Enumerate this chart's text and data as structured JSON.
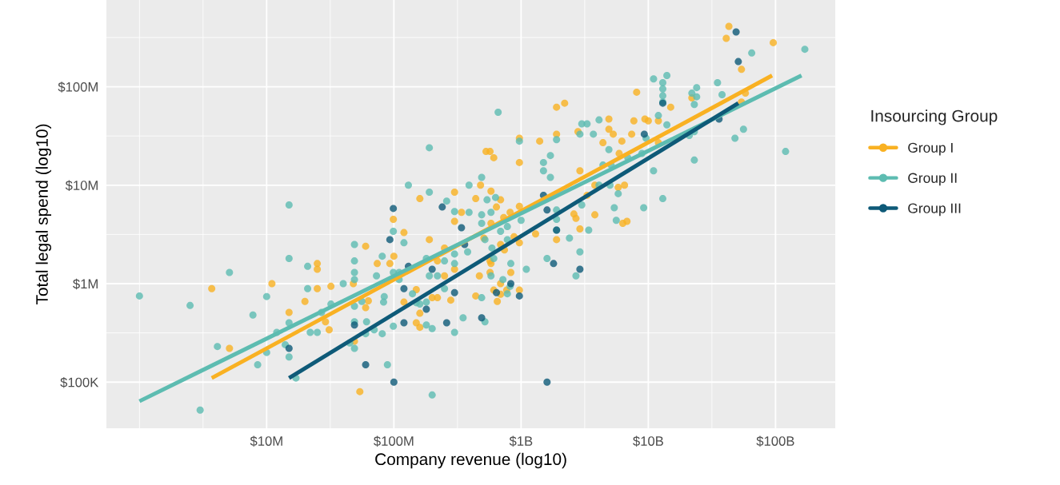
{
  "chart_data": {
    "type": "scatter",
    "xlabel": "Company revenue (log10)",
    "ylabel": "Total legal spend (log10)",
    "legend_title": "Insourcing Group",
    "log": "xy",
    "grid": true,
    "legend": "right",
    "xlim": [
      550000.0,
      295000000000.0
    ],
    "ylim": [
      34000.0,
      760000000.0
    ],
    "xticks": [
      {
        "value": 10000000.0,
        "label": "$10M"
      },
      {
        "value": 100000000.0,
        "label": "$100M"
      },
      {
        "value": 1000000000.0,
        "label": "$1B"
      },
      {
        "value": 10000000000.0,
        "label": "$10B"
      },
      {
        "value": 100000000000.0,
        "label": "$100B"
      }
    ],
    "yticks": [
      {
        "value": 100000.0,
        "label": "$100K"
      },
      {
        "value": 1000000.0,
        "label": "$1M"
      },
      {
        "value": 10000000.0,
        "label": "$10M"
      },
      {
        "value": 100000000.0,
        "label": "$100M"
      }
    ],
    "series": [
      {
        "name": "Group I",
        "marker": "circle",
        "color": "#f9b122",
        "x": [
          3700000.0,
          5100000.0,
          11000000.0,
          15000000.0,
          20000000.0,
          25000000.0,
          25000000.0,
          25000000.0,
          29000000.0,
          31000000.0,
          32000000.0,
          48000000.0,
          49000000.0,
          54000000.0,
          60000000.0,
          60000000.0,
          63000000.0,
          74000000.0,
          93000000.0,
          99000000.0,
          100000000.0,
          120000000.0,
          120000000.0,
          150000000.0,
          150000000.0,
          160000000.0,
          160000000.0,
          160000000.0,
          190000000.0,
          200000000.0,
          220000000.0,
          220000000.0,
          250000000.0,
          250000000.0,
          280000000.0,
          300000000.0,
          300000000.0,
          300000000.0,
          340000000.0,
          43000000000.0,
          41000000000.0,
          96000000000.0,
          54000000000.0,
          58000000000.0,
          54000000000.0,
          22000000000.0,
          15000000000.0,
          8100000000.0,
          1900000000.0,
          2200000000.0,
          4900000000.0,
          7700000000.0,
          9400000000.0,
          10000000000.0,
          12000000000.0,
          4900000000.0,
          5300000000.0,
          2800000000.0,
          1900000000.0,
          970000000.0,
          1400000000.0,
          4400000000.0,
          6200000000.0,
          7400000000.0,
          12000000000.0,
          530000000.0,
          570000000.0,
          610000000.0,
          970000000.0,
          5900000000.0,
          2900000000.0,
          3800000000.0,
          5800000000.0,
          6500000000.0,
          480000000.0,
          580000000.0,
          690000000.0,
          440000000.0,
          640000000.0,
          970000000.0,
          820000000.0,
          730000000.0,
          2600000000.0,
          2700000000.0,
          3800000000.0,
          6300000000.0,
          6800000000.0,
          2900000000.0,
          1300000000.0,
          1900000000.0,
          580000000.0,
          510000000.0,
          690000000.0,
          880000000.0,
          970000000.0,
          740000000.0,
          3300000000.0,
          570000000.0,
          580000000.0,
          830000000.0,
          570000000.0,
          470000000.0,
          690000000.0,
          970000000.0,
          610000000.0,
          690000000.0,
          770000000.0,
          440000000.0,
          650000000.0
        ],
        "values": [
          890000.0,
          220000.0,
          1000000.0,
          510000.0,
          660000.0,
          1600000.0,
          1400000.0,
          890000.0,
          410000.0,
          340000.0,
          940000.0,
          1000000.0,
          260000.0,
          80000.0,
          2400000.0,
          570000.0,
          670000.0,
          1600000.0,
          1600000.0,
          4500000.0,
          1900000.0,
          3300000.0,
          650000.0,
          870000.0,
          400000.0,
          7300000.0,
          360000.0,
          500000.0,
          2800000.0,
          720000.0,
          720000.0,
          1700000.0,
          2300000.0,
          1200000.0,
          680000.0,
          8500000.0,
          4300000.0,
          1400000.0,
          5300000.0,
          410000000.0,
          310000000.0,
          280000000.0,
          150000000.0,
          86000000.0,
          70000000.0,
          77000000.0,
          62000000.0,
          88000000.0,
          62000000.0,
          68000000.0,
          47000000.0,
          45000000.0,
          47000000.0,
          45000000.0,
          45000000.0,
          37000000.0,
          33000000.0,
          35000000.0,
          33000000.0,
          30000000.0,
          28000000.0,
          27000000.0,
          28000000.0,
          33000000.0,
          27000000.0,
          22000000.0,
          22000000.0,
          19000000.0,
          17000000.0,
          21000000.0,
          14000000.0,
          10000000.0,
          9500000.0,
          10000000.0,
          10000000.0,
          8700000.0,
          7100000.0,
          7300000.0,
          6000000.0,
          6100000.0,
          5300000.0,
          4700000.0,
          5100000.0,
          4600000.0,
          5000000.0,
          4100000.0,
          4300000.0,
          3600000.0,
          3200000.0,
          2800000.0,
          4100000.0,
          2900000.0,
          2500000.0,
          3000000.0,
          2600000.0,
          2200000.0,
          7900000.0,
          1700000.0,
          1600000.0,
          1300000.0,
          1300000.0,
          1200000.0,
          1000000.0,
          860000.0,
          860000.0,
          780000.0,
          860000.0,
          750000.0,
          660000.0
        ]
      },
      {
        "name": "Group II",
        "marker": "circle",
        "color": "#5dbcb1",
        "x": [
          1000000.0,
          2500000.0,
          3000000.0,
          4100000.0,
          5100000.0,
          7800000.0,
          8500000.0,
          10000000.0,
          10000000.0,
          12000000.0,
          14000000.0,
          15000000.0,
          15000000.0,
          15000000.0,
          15000000.0,
          17000000.0,
          21000000.0,
          21000000.0,
          22000000.0,
          25000000.0,
          27000000.0,
          32000000.0,
          40000000.0,
          45000000.0,
          49000000.0,
          49000000.0,
          49000000.0,
          49000000.0,
          49000000.0,
          49000000.0,
          49000000.0,
          56000000.0,
          61000000.0,
          60000000.0,
          70000000.0,
          73000000.0,
          81000000.0,
          81000000.0,
          84000000.0,
          83000000.0,
          89000000.0,
          99000000.0,
          99000000.0,
          99000000.0,
          110000000.0,
          110000000.0,
          120000000.0,
          130000000.0,
          140000000.0,
          150000000.0,
          160000000.0,
          180000000.0,
          180000000.0,
          180000000.0,
          190000000.0,
          190000000.0,
          190000000.0,
          200000000.0,
          200000000.0,
          220000000.0,
          250000000.0,
          250000000.0,
          260000000.0,
          300000000.0,
          300000000.0,
          300000000.0,
          300000000.0,
          350000000.0,
          390000000.0,
          390000000.0,
          380000000.0,
          170000000000.0,
          65000000000.0,
          14000000000.0,
          11000000000.0,
          13000000000.0,
          13000000000.0,
          13000000000.0,
          13000000000.0,
          12000000000.0,
          14000000000.0,
          24000000000.0,
          22000000000.0,
          24000000000.0,
          23000000000.0,
          35000000000.0,
          38000000000.0,
          48000000000.0,
          56000000000.0,
          120000000000.0,
          23000000000.0,
          21000000000.0,
          23000000000.0,
          660000000.0,
          970000000.0,
          1900000000.0,
          3000000000.0,
          3300000000.0,
          4100000000.0,
          2900000000.0,
          3700000000.0,
          4900000000.0,
          9600000000.0,
          8900000000.0,
          1500000000.0,
          1700000000.0,
          1500000000.0,
          1700000000.0,
          4400000000.0,
          5100000000.0,
          6900000000.0,
          11000000000.0,
          4100000000.0,
          5000000000.0,
          5800000000.0,
          13000000000.0,
          9200000000.0,
          5400000000.0,
          5600000000.0,
          3400000000.0,
          3000000000.0,
          1900000000.0,
          1900000000.0,
          1900000000.0,
          2400000000.0,
          2900000000.0,
          1600000000.0,
          2700000000.0,
          1100000000.0,
          1000000000.0,
          490000000.0,
          540000000.0,
          630000000.0,
          580000000.0,
          490000000.0,
          490000000.0,
          520000000.0,
          590000000.0,
          690000000.0,
          780000000.0,
          780000000.0,
          610000000.0,
          580000000.0,
          830000000.0,
          720000000.0,
          820000000.0,
          780000000.0,
          490000000.0,
          520000000.0
        ],
        "values": [
          750000.0,
          600000.0,
          52000.0,
          230000.0,
          1300000.0,
          480000.0,
          150000.0,
          740000.0,
          200000.0,
          320000.0,
          240000.0,
          6300000.0,
          1800000.0,
          400000.0,
          180000.0,
          110000.0,
          1500000.0,
          890000.0,
          320000.0,
          320000.0,
          510000.0,
          620000.0,
          1000000.0,
          250000.0,
          2500000.0,
          1700000.0,
          1300000.0,
          1100000.0,
          590000.0,
          410000.0,
          220000.0,
          660000.0,
          410000.0,
          310000.0,
          340000.0,
          1200000.0,
          310000.0,
          1900000.0,
          740000.0,
          650000.0,
          150000.0,
          3400000.0,
          1300000.0,
          370000.0,
          1300000.0,
          1100000.0,
          2600000.0,
          10000000.0,
          790000.0,
          640000.0,
          620000.0,
          1800000.0,
          650000.0,
          380000.0,
          1200000.0,
          24000000.0,
          8500000.0,
          350000.0,
          74000.0,
          1200000.0,
          1700000.0,
          890000.0,
          6900000.0,
          5400000.0,
          2000000.0,
          1600000.0,
          320000.0,
          450000.0,
          10000000.0,
          5300000.0,
          2100000.0,
          240000000.0,
          220000000.0,
          130000000.0,
          120000000.0,
          110000000.0,
          95000000.0,
          81000000.0,
          70000000.0,
          51000000.0,
          41000000.0,
          98000000.0,
          86000000.0,
          79000000.0,
          66000000.0,
          110000000.0,
          83000000.0,
          30000000.0,
          37000000.0,
          22000000.0,
          18000000.0,
          32000000.0,
          35000000.0,
          55000000.0,
          28000000.0,
          29000000.0,
          42000000.0,
          42000000.0,
          46000000.0,
          33000000.0,
          33000000.0,
          23000000.0,
          30000000.0,
          21000000.0,
          17000000.0,
          20000000.0,
          14000000.0,
          12000000.0,
          16000000.0,
          16000000.0,
          19000000.0,
          14000000.0,
          10000000.0,
          10000000.0,
          8200000.0,
          7300000.0,
          5900000.0,
          5900000.0,
          4400000.0,
          3500000.0,
          6300000.0,
          5600000.0,
          4500000.0,
          3500000.0,
          2900000.0,
          2100000.0,
          1800000.0,
          1200000.0,
          1400000.0,
          4400000.0,
          12000000.0,
          7100000.0,
          7500000.0,
          5300000.0,
          5000000.0,
          4100000.0,
          2800000.0,
          2300000.0,
          3400000.0,
          3800000.0,
          2800000.0,
          1800000.0,
          1200000.0,
          1600000.0,
          1100000.0,
          940000.0,
          790000.0,
          720000.0,
          410000.0
        ]
      },
      {
        "name": "Group III",
        "marker": "circle",
        "color": "#0e5a78",
        "x": [
          15000000.0,
          49000000.0,
          60000000.0,
          93000000.0,
          99000000.0,
          100000000.0,
          120000000.0,
          120000000.0,
          130000000.0,
          180000000.0,
          200000000.0,
          240000000.0,
          260000000.0,
          300000000.0,
          340000000.0,
          49000000000.0,
          51000000000.0,
          13000000000.0,
          9300000000.0,
          36000000000.0,
          1500000000.0,
          1600000000.0,
          360000000.0,
          1800000000.0,
          2900000000.0,
          830000000.0,
          970000000.0,
          640000000.0,
          1900000000.0,
          490000000.0,
          1600000000.0
        ],
        "values": [
          220000.0,
          380000.0,
          150000.0,
          2800000.0,
          5800000.0,
          100000.0,
          890000.0,
          400000.0,
          1500000.0,
          550000.0,
          1400000.0,
          6000000.0,
          400000.0,
          810000.0,
          3700000.0,
          360000000.0,
          180000000.0,
          68000000.0,
          33000000.0,
          47000000.0,
          7900000.0,
          5600000.0,
          2500000.0,
          1600000.0,
          1400000.0,
          1000000.0,
          750000.0,
          810000.0,
          3500000.0,
          450000.0,
          100000.0
        ]
      },
      {
        "type": "line",
        "marker": "none",
        "color": "#f9b122",
        "x": [
          3700000.0,
          94000000000.0
        ],
        "values": [
          110000.0,
          130000000.0
        ]
      },
      {
        "type": "line",
        "marker": "none",
        "color": "#5dbcb1",
        "x": [
          1000000.0,
          160000000000.0
        ],
        "values": [
          64000.0,
          130000000.0
        ]
      },
      {
        "type": "line",
        "marker": "none",
        "color": "#0e5a78",
        "x": [
          15000000.0,
          51000000000.0
        ],
        "values": [
          110000.0,
          68000000.0
        ]
      }
    ]
  }
}
